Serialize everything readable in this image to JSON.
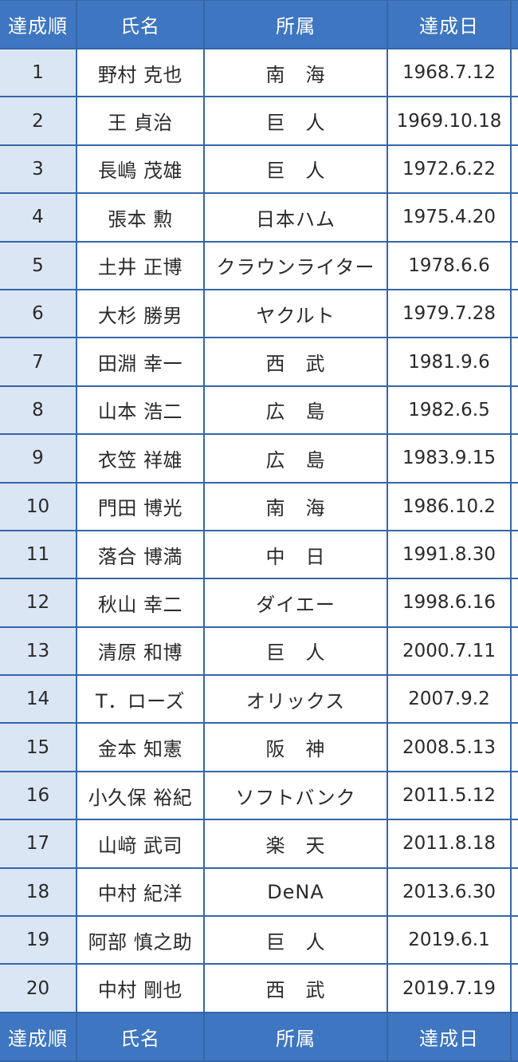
{
  "header": {
    "col_order": "達成順",
    "col_name": "氏名",
    "col_team": "所属",
    "col_date": "達成日"
  },
  "rows": [
    {
      "order": "1",
      "name": "野村 克也",
      "team": "南　海",
      "date": "1968.7.12"
    },
    {
      "order": "2",
      "name": "王 貞治",
      "team": "巨　人",
      "date": "1969.10.18"
    },
    {
      "order": "3",
      "name": "長嶋 茂雄",
      "team": "巨　人",
      "date": "1972.6.22"
    },
    {
      "order": "4",
      "name": "張本 勲",
      "team": "日本ハム",
      "date": "1975.4.20"
    },
    {
      "order": "5",
      "name": "土井 正博",
      "team": "クラウンライター",
      "date": "1978.6.6"
    },
    {
      "order": "6",
      "name": "大杉 勝男",
      "team": "ヤクルト",
      "date": "1979.7.28"
    },
    {
      "order": "7",
      "name": "田淵 幸一",
      "team": "西　武",
      "date": "1981.9.6"
    },
    {
      "order": "8",
      "name": "山本 浩二",
      "team": "広　島",
      "date": "1982.6.5"
    },
    {
      "order": "9",
      "name": "衣笠 祥雄",
      "team": "広　島",
      "date": "1983.9.15"
    },
    {
      "order": "10",
      "name": "門田 博光",
      "team": "南　海",
      "date": "1986.10.2"
    },
    {
      "order": "11",
      "name": "落合 博満",
      "team": "中　日",
      "date": "1991.8.30"
    },
    {
      "order": "12",
      "name": "秋山 幸二",
      "team": "ダイエー",
      "date": "1998.6.16"
    },
    {
      "order": "13",
      "name": "清原 和博",
      "team": "巨　人",
      "date": "2000.7.11"
    },
    {
      "order": "14",
      "name": "T．ローズ",
      "team": "オリックス",
      "date": "2007.9.2"
    },
    {
      "order": "15",
      "name": "金本 知憲",
      "team": "阪　神",
      "date": "2008.5.13"
    },
    {
      "order": "16",
      "name": "小久保 裕紀",
      "team": "ソフトバンク",
      "date": "2011.5.12"
    },
    {
      "order": "17",
      "name": "山﨑 武司",
      "team": "楽　天",
      "date": "2011.8.18"
    },
    {
      "order": "18",
      "name": "中村 紀洋",
      "team": "DeNA",
      "date": "2013.6.30"
    },
    {
      "order": "19",
      "name": "阿部 慎之助",
      "team": "巨　人",
      "date": "2019.6.1"
    },
    {
      "order": "20",
      "name": "中村 剛也",
      "team": "西　武",
      "date": "2019.7.19"
    }
  ],
  "footer": {
    "col_order": "達成順",
    "col_name": "氏名",
    "col_team": "所属",
    "col_date": "達成日"
  }
}
